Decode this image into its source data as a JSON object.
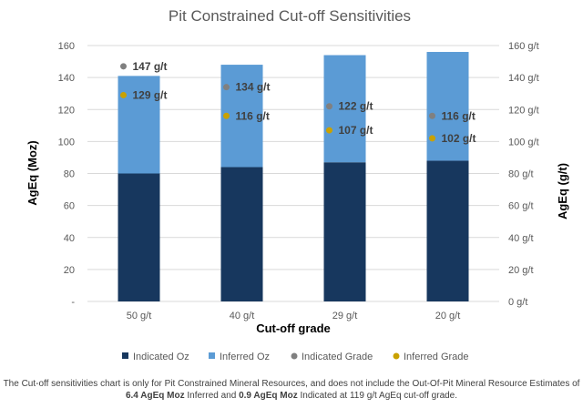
{
  "chart_data": {
    "type": "bar",
    "title": "Pit Constrained Cut-off Sensitivities",
    "xlabel": "Cut-off grade",
    "ylabel": "AgEq (Moz)",
    "y2label": "AgEq (g/t)",
    "categories": [
      "50 g/t",
      "40 g/t",
      "29 g/t",
      "20 g/t"
    ],
    "ylim": [
      0,
      160
    ],
    "y2lim": [
      0,
      160
    ],
    "yticks": [
      "-",
      "20",
      "40",
      "60",
      "80",
      "100",
      "120",
      "140",
      "160"
    ],
    "y2ticks": [
      "0 g/t",
      "20 g/t",
      "40 g/t",
      "60 g/t",
      "80 g/t",
      "100 g/t",
      "120 g/t",
      "140 g/t",
      "160 g/t"
    ],
    "series": [
      {
        "name": "Indicated Oz",
        "kind": "bar",
        "color": "#17375e",
        "values": [
          80,
          84,
          87,
          88
        ]
      },
      {
        "name": "Inferred Oz",
        "kind": "bar",
        "color": "#5b9bd5",
        "values": [
          61,
          64,
          67,
          68
        ]
      },
      {
        "name": "Indicated Grade",
        "kind": "point",
        "color": "#808080",
        "values": [
          147,
          134,
          122,
          116
        ],
        "labels": [
          "147 g/t",
          "134 g/t",
          "122 g/t",
          "116 g/t"
        ]
      },
      {
        "name": "Inferred Grade",
        "kind": "point",
        "color": "#c9a100",
        "values": [
          129,
          116,
          107,
          102
        ],
        "labels": [
          "129 g/t",
          "116 g/t",
          "107 g/t",
          "102 g/t"
        ]
      }
    ],
    "legend": "bottom"
  },
  "footnote": {
    "part1": "The Cut-off sensitivities chart is only for Pit Constrained Mineral Resources, and does not include the Out-Of-Pit Mineral Resource Estimates of ",
    "bold1": "6.4 AgEq Moz",
    "part2": " Inferred and ",
    "bold2": "0.9 AgEq Moz",
    "part3": " Indicated at 119 g/t AgEq cut-off grade."
  }
}
